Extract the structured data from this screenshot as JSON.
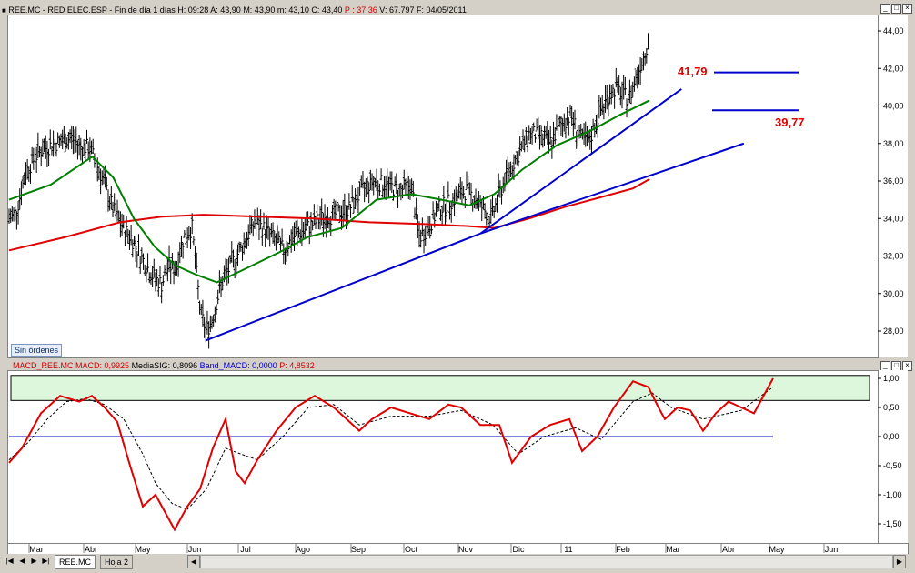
{
  "window": {
    "price_title_prefix": "REE.MC - RED ELEC.ESP - Fin de día 1 días  H: 09:28  A: 43,90  M: 43,90  m: 43,10  C: 43,40",
    "price_title_p": "P : 37,36",
    "price_title_suffix": "V: 67.797  F: 04/05/2011",
    "macd_title_macd": "MACD_REE.MC  MACD: 0,9925",
    "macd_title_sig": "MediaSIG: 0,8096",
    "macd_title_band": "Band_MACD: 0,0000",
    "macd_title_p": "P: 4,8532"
  },
  "badge": "Sin órdenes",
  "tabs": [
    "REE.MC",
    "Hoja 2"
  ],
  "nav_icons": [
    "first-icon",
    "prev-icon",
    "next-icon",
    "last-icon"
  ],
  "annotations": {
    "resistance_label": "41,79",
    "support_label": "39,77"
  },
  "colors": {
    "bars": "#000000",
    "ma_fast": "#008000",
    "ma_slow": "#e00000",
    "trendlines": "#0000cc",
    "macd": "#e00000",
    "signal": "#000000",
    "band_fill": "#ddf7dd",
    "labels": "#e00000"
  },
  "chart_data": [
    {
      "type": "ohlc",
      "title": "REE.MC - RED ELEC.ESP",
      "x_tick_labels": [
        "Mar",
        "Abr",
        "May",
        "Jun",
        "Jul",
        "Ago",
        "Sep",
        "Oct",
        "Nov",
        "Dic",
        "11",
        "Feb",
        "Mar",
        "Abr",
        "May",
        "Jun"
      ],
      "y_ticks": [
        "28,00",
        "30,00",
        "32,00",
        "34,00",
        "36,00",
        "38,00",
        "40,00",
        "42,00",
        "44,00"
      ],
      "ylim": [
        27,
        45
      ],
      "close_path": [
        [
          0,
          34.0
        ],
        [
          5,
          34.3
        ],
        [
          12,
          36.5
        ],
        [
          22,
          37.6
        ],
        [
          33,
          38.0
        ],
        [
          45,
          38.3
        ],
        [
          52,
          37.8
        ],
        [
          58,
          37.8
        ],
        [
          68,
          36.0
        ],
        [
          75,
          34.5
        ],
        [
          82,
          33.5
        ],
        [
          88,
          33.0
        ],
        [
          95,
          32.0
        ],
        [
          103,
          31.0
        ],
        [
          110,
          30.5
        ],
        [
          115,
          31.5
        ],
        [
          120,
          31.3
        ],
        [
          126,
          33.0
        ],
        [
          132,
          33.5
        ],
        [
          138,
          29.0
        ],
        [
          142,
          28.0
        ],
        [
          146,
          28.5
        ],
        [
          153,
          30.5
        ],
        [
          160,
          31.5
        ],
        [
          168,
          32.5
        ],
        [
          177,
          33.8
        ],
        [
          183,
          33.5
        ],
        [
          190,
          33.0
        ],
        [
          198,
          32.3
        ],
        [
          205,
          33.0
        ],
        [
          215,
          33.5
        ],
        [
          225,
          34.0
        ],
        [
          235,
          34.2
        ],
        [
          245,
          34.5
        ],
        [
          255,
          35.5
        ],
        [
          262,
          36.0
        ],
        [
          272,
          35.8
        ],
        [
          282,
          35.5
        ],
        [
          290,
          35.8
        ],
        [
          296,
          33.0
        ],
        [
          302,
          33.5
        ],
        [
          310,
          34.5
        ],
        [
          320,
          35.0
        ],
        [
          330,
          35.5
        ],
        [
          337,
          35.0
        ],
        [
          342,
          34.5
        ],
        [
          348,
          34.0
        ],
        [
          352,
          35.0
        ],
        [
          360,
          36.5
        ],
        [
          368,
          37.5
        ],
        [
          375,
          38.5
        ],
        [
          382,
          38.5
        ],
        [
          390,
          38.0
        ],
        [
          398,
          39.0
        ],
        [
          405,
          39.5
        ],
        [
          412,
          38.3
        ],
        [
          418,
          38.0
        ],
        [
          425,
          39.5
        ],
        [
          432,
          40.5
        ],
        [
          438,
          41.0
        ],
        [
          443,
          40.5
        ],
        [
          448,
          40.5
        ],
        [
          452,
          41.5
        ],
        [
          457,
          42.5
        ],
        [
          461,
          43.5
        ]
      ],
      "ma_fast_path": [
        [
          0,
          35.0
        ],
        [
          30,
          35.8
        ],
        [
          60,
          37.3
        ],
        [
          75,
          36.2
        ],
        [
          90,
          34.0
        ],
        [
          105,
          32.5
        ],
        [
          120,
          31.5
        ],
        [
          135,
          31.0
        ],
        [
          150,
          30.6
        ],
        [
          170,
          31.3
        ],
        [
          195,
          32.2
        ],
        [
          215,
          33.0
        ],
        [
          240,
          33.5
        ],
        [
          265,
          35.0
        ],
        [
          290,
          35.3
        ],
        [
          312,
          35.0
        ],
        [
          332,
          34.7
        ],
        [
          350,
          35.3
        ],
        [
          370,
          36.6
        ],
        [
          395,
          37.9
        ],
        [
          420,
          38.7
        ],
        [
          440,
          39.5
        ],
        [
          462,
          40.3
        ]
      ],
      "ma_slow_path": [
        [
          0,
          32.3
        ],
        [
          40,
          33.0
        ],
        [
          80,
          33.8
        ],
        [
          110,
          34.1
        ],
        [
          140,
          34.2
        ],
        [
          180,
          34.1
        ],
        [
          220,
          34.0
        ],
        [
          260,
          33.8
        ],
        [
          300,
          33.7
        ],
        [
          330,
          33.6
        ],
        [
          350,
          33.5
        ],
        [
          375,
          34.0
        ],
        [
          400,
          34.6
        ],
        [
          425,
          35.1
        ],
        [
          450,
          35.6
        ],
        [
          462,
          36.1
        ]
      ],
      "trendlines": [
        {
          "from": [
            142,
            27.5
          ],
          "to": [
            340,
            33.2
          ]
        },
        {
          "from": [
            340,
            33.2
          ],
          "to": [
            485,
            40.9
          ]
        },
        {
          "from": [
            340,
            33.2
          ],
          "to": [
            530,
            38.0
          ]
        }
      ],
      "horizontal_levels": [
        {
          "label": "41,79",
          "value": 41.79
        },
        {
          "label": "39,77",
          "value": 39.77
        }
      ]
    },
    {
      "type": "line",
      "title": "MACD_REE.MC",
      "y_ticks": [
        "1,00",
        "0,50",
        "0,00",
        "-0,50",
        "-1,00",
        "-1,50"
      ],
      "ylim": [
        -1.65,
        1.2
      ],
      "band": [
        0.62,
        1.05
      ],
      "zero_line": 0.0,
      "series": [
        {
          "name": "MACD",
          "points": [
            [
              0,
              -0.45
            ],
            [
              10,
              -0.2
            ],
            [
              25,
              0.4
            ],
            [
              40,
              0.7
            ],
            [
              55,
              0.6
            ],
            [
              65,
              0.7
            ],
            [
              75,
              0.5
            ],
            [
              85,
              0.25
            ],
            [
              95,
              -0.5
            ],
            [
              105,
              -1.2
            ],
            [
              115,
              -1.0
            ],
            [
              125,
              -1.4
            ],
            [
              130,
              -1.6
            ],
            [
              140,
              -1.2
            ],
            [
              150,
              -0.9
            ],
            [
              160,
              -0.2
            ],
            [
              170,
              0.3
            ],
            [
              178,
              -0.6
            ],
            [
              185,
              -0.8
            ],
            [
              195,
              -0.4
            ],
            [
              210,
              0.1
            ],
            [
              225,
              0.5
            ],
            [
              240,
              0.7
            ],
            [
              255,
              0.5
            ],
            [
              265,
              0.3
            ],
            [
              275,
              0.1
            ],
            [
              285,
              0.3
            ],
            [
              300,
              0.5
            ],
            [
              315,
              0.4
            ],
            [
              330,
              0.3
            ],
            [
              345,
              0.55
            ],
            [
              355,
              0.5
            ],
            [
              370,
              0.2
            ],
            [
              385,
              0.2
            ],
            [
              395,
              -0.45
            ],
            [
              410,
              0.0
            ],
            [
              425,
              0.2
            ],
            [
              440,
              0.3
            ],
            [
              450,
              -0.25
            ],
            [
              462,
              0.0
            ],
            [
              475,
              0.5
            ],
            [
              490,
              0.95
            ],
            [
              502,
              0.85
            ],
            [
              510,
              0.5
            ],
            [
              515,
              0.3
            ],
            [
              525,
              0.5
            ],
            [
              535,
              0.45
            ],
            [
              545,
              0.1
            ],
            [
              555,
              0.4
            ],
            [
              565,
              0.6
            ],
            [
              575,
              0.5
            ],
            [
              585,
              0.4
            ],
            [
              600,
              1.0
            ]
          ]
        },
        {
          "name": "MediaSIG",
          "points": [
            [
              0,
              -0.4
            ],
            [
              15,
              -0.1
            ],
            [
              30,
              0.3
            ],
            [
              45,
              0.6
            ],
            [
              60,
              0.65
            ],
            [
              75,
              0.55
            ],
            [
              90,
              0.3
            ],
            [
              105,
              -0.3
            ],
            [
              115,
              -0.8
            ],
            [
              128,
              -1.15
            ],
            [
              140,
              -1.25
            ],
            [
              155,
              -0.9
            ],
            [
              170,
              -0.2
            ],
            [
              182,
              -0.3
            ],
            [
              195,
              -0.4
            ],
            [
              215,
              0.0
            ],
            [
              235,
              0.5
            ],
            [
              255,
              0.55
            ],
            [
              275,
              0.2
            ],
            [
              300,
              0.35
            ],
            [
              330,
              0.35
            ],
            [
              355,
              0.45
            ],
            [
              380,
              0.2
            ],
            [
              400,
              -0.3
            ],
            [
              420,
              0.0
            ],
            [
              445,
              0.15
            ],
            [
              465,
              -0.05
            ],
            [
              490,
              0.6
            ],
            [
              505,
              0.75
            ],
            [
              520,
              0.5
            ],
            [
              545,
              0.3
            ],
            [
              575,
              0.45
            ],
            [
              600,
              0.85
            ]
          ]
        },
        {
          "name": "Band_MACD",
          "points": [
            [
              0,
              0.0
            ],
            [
              600,
              0.0
            ]
          ]
        }
      ]
    }
  ]
}
